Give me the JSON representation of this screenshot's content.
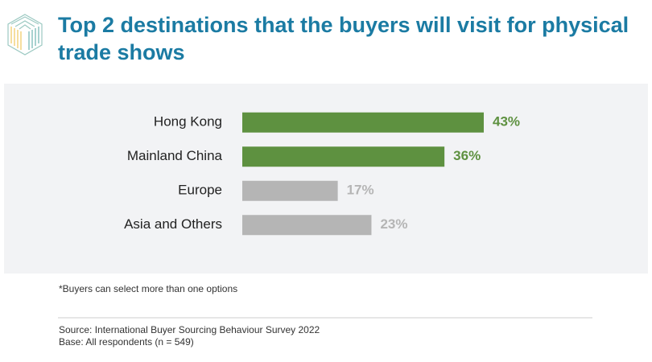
{
  "chart_data": {
    "type": "hbar",
    "title": "Top 2 destinations that the buyers will visit for physical trade shows",
    "categories": [
      "Hong Kong",
      "Mainland China",
      "Europe",
      "Asia and Others"
    ],
    "values": [
      43,
      36,
      17,
      23
    ],
    "value_labels": [
      "43%",
      "36%",
      "17%",
      "23%"
    ],
    "colors": [
      "#5e9140",
      "#5e9140",
      "#b5b5b5",
      "#b5b5b5"
    ],
    "footnote": "*Buyers can select more than one options",
    "source": "Source: International Buyer Sourcing Behaviour Survey 2022",
    "base": "Base: All respondents (n = 549)"
  }
}
